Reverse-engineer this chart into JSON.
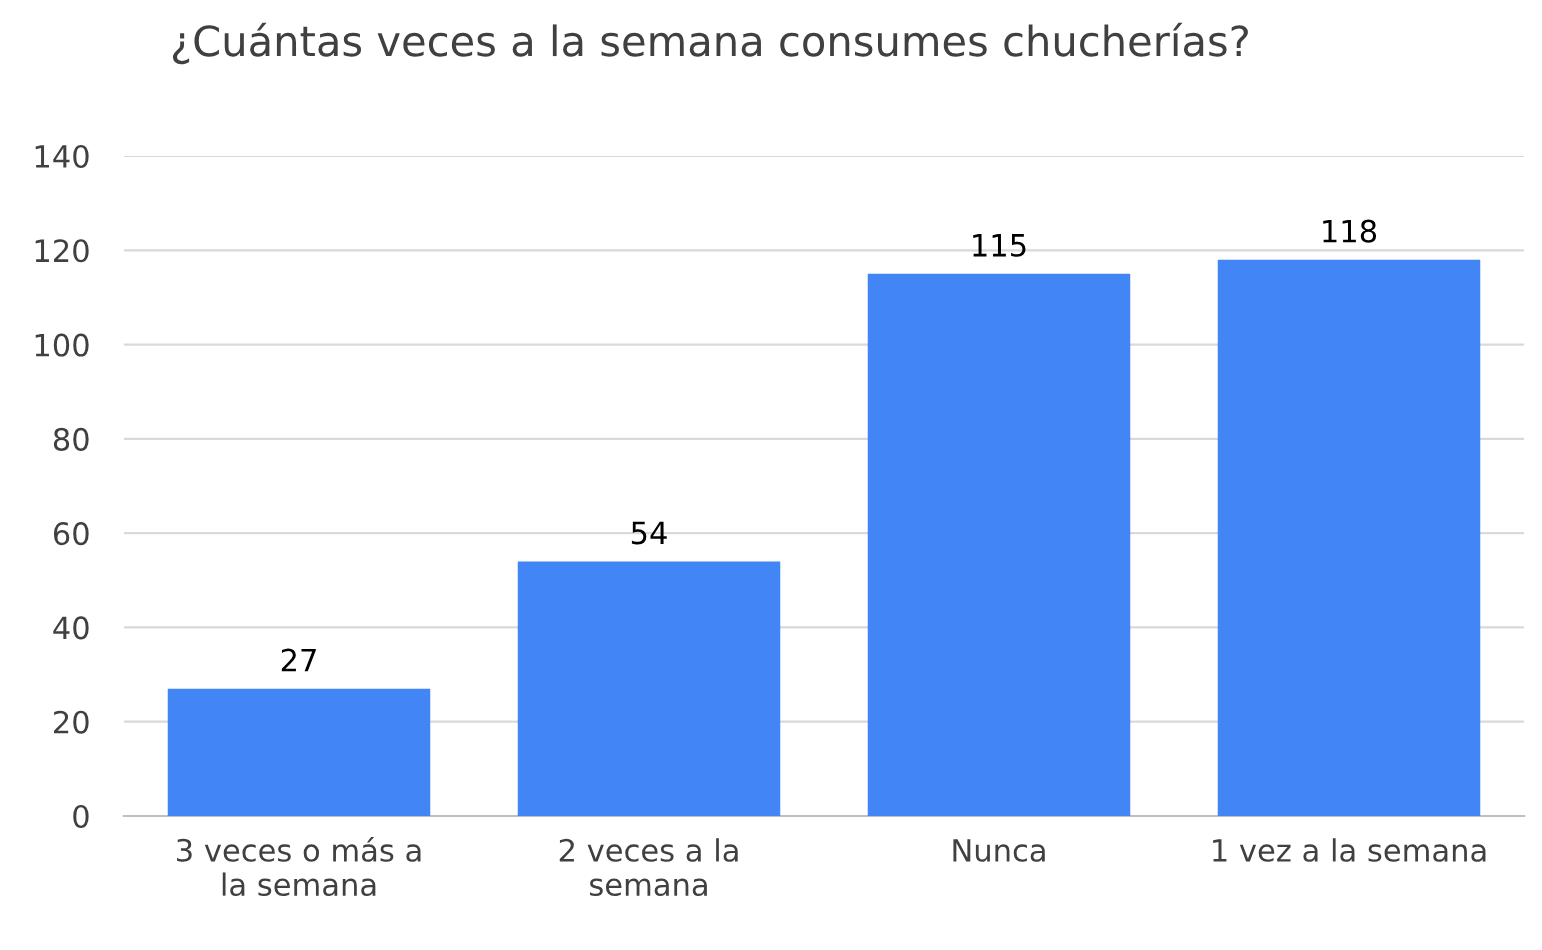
{
  "chart_data": {
    "type": "bar",
    "title": "¿Cuántas veces a la semana consumes chucherías?",
    "categories": [
      "3 veces o más a la semana",
      "2 veces a la semana",
      "Nunca",
      "1 vez a la semana"
    ],
    "values": [
      27,
      54,
      115,
      118
    ],
    "color": "#4285f4",
    "ylim": [
      0,
      140
    ],
    "yticks": [
      0,
      20,
      40,
      60,
      80,
      100,
      120,
      140
    ],
    "grid": "y",
    "data_labels": true
  }
}
